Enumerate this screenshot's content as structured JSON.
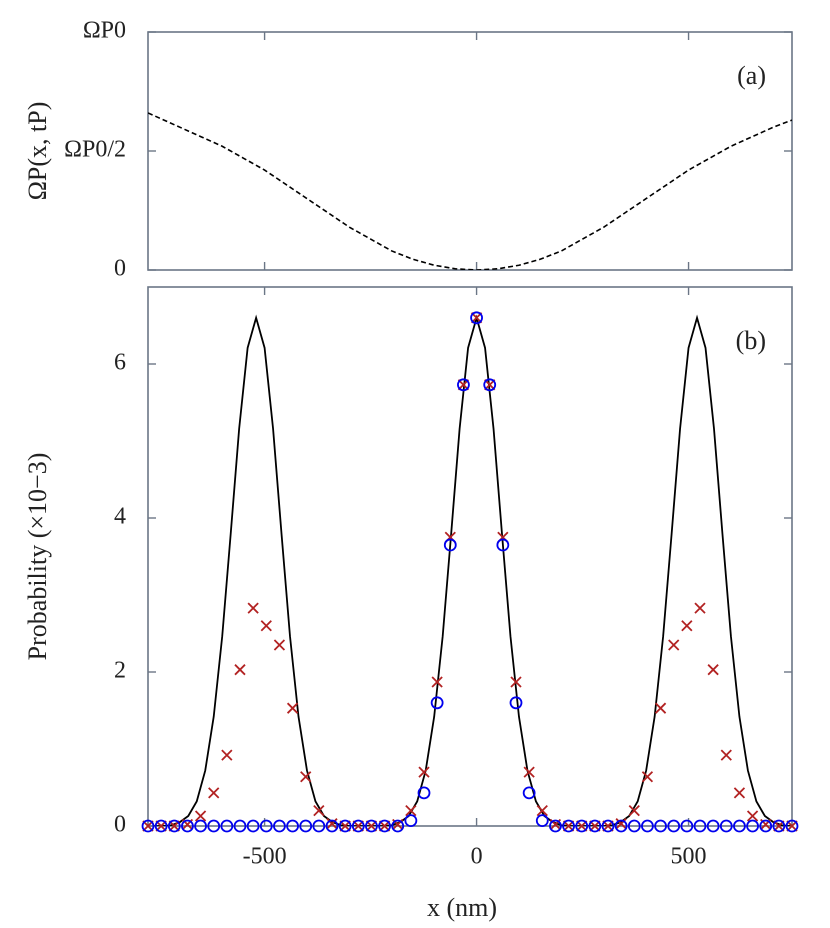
{
  "chart_data": [
    {
      "type": "line",
      "annotation": "(a)",
      "ylabel": "ΩP(x, tP)",
      "xlim": [
        -775,
        744
      ],
      "xticks": [
        -500,
        0,
        500
      ],
      "ylim": [
        0,
        1
      ],
      "yticks": [
        0,
        {
          "value": 0.5,
          "label": "ΩP0/2"
        },
        {
          "value": 1,
          "label": "ΩP0"
        }
      ],
      "series": [
        {
          "color": "#000000",
          "style": "dashed",
          "x": [
            -775,
            -750,
            -700,
            -650,
            -600,
            -550,
            -500,
            -450,
            -400,
            -350,
            -300,
            -250,
            -200,
            -150,
            -100,
            -50,
            0,
            50,
            100,
            150,
            200,
            250,
            300,
            350,
            400,
            450,
            500,
            550,
            600,
            650,
            700,
            744
          ],
          "values": [
            0.66,
            0.64,
            0.6,
            0.56,
            0.52,
            0.47,
            0.42,
            0.36,
            0.3,
            0.24,
            0.18,
            0.13,
            0.08,
            0.045,
            0.02,
            0.005,
            0,
            0.005,
            0.02,
            0.045,
            0.08,
            0.13,
            0.18,
            0.24,
            0.3,
            0.36,
            0.42,
            0.47,
            0.52,
            0.56,
            0.6,
            0.63
          ]
        }
      ]
    },
    {
      "type": "line",
      "annotation": "(b)",
      "ylabel": "Probability (×10−3)",
      "xlabel": "x (nm)",
      "xlim": [
        -775,
        744
      ],
      "xticks": [
        {
          "value": -500,
          "label": "-500"
        },
        0,
        500
      ],
      "ylim": [
        0,
        7
      ],
      "yticks": [
        0,
        2,
        4,
        6
      ],
      "series": [
        {
          "color": "#000000",
          "style": "solid",
          "x": [
            -760,
            -740,
            -720,
            -700,
            -680,
            -660,
            -640,
            -620,
            -600,
            -580,
            -560,
            -540,
            -520,
            -500,
            -480,
            -460,
            -440,
            -420,
            -400,
            -380,
            -360,
            -340,
            -320,
            -300,
            -280,
            -260,
            -240,
            -220,
            -200,
            -180,
            -160,
            -140,
            -120,
            -100,
            -80,
            -60,
            -40,
            -20,
            0,
            20,
            40,
            60,
            80,
            100,
            120,
            140,
            160,
            180,
            200,
            220,
            240,
            260,
            280,
            300,
            320,
            340,
            360,
            380,
            400,
            420,
            440,
            460,
            480,
            500,
            520,
            540,
            560,
            580,
            600,
            620,
            640,
            660,
            680,
            700,
            720,
            740
          ],
          "values": [
            0,
            0,
            0.01,
            0.05,
            0.13,
            0.32,
            0.72,
            1.42,
            2.46,
            3.79,
            5.16,
            6.21,
            6.6,
            6.21,
            5.16,
            3.79,
            2.46,
            1.42,
            0.72,
            0.32,
            0.13,
            0.05,
            0.01,
            0,
            0,
            0,
            0,
            0,
            0.01,
            0.05,
            0.13,
            0.32,
            0.72,
            1.42,
            2.46,
            3.79,
            5.16,
            6.21,
            6.6,
            6.21,
            5.16,
            3.79,
            2.46,
            1.42,
            0.72,
            0.32,
            0.13,
            0.05,
            0.01,
            0,
            0,
            0,
            0,
            0,
            0.01,
            0.05,
            0.13,
            0.32,
            0.72,
            1.42,
            2.46,
            3.79,
            5.16,
            6.21,
            6.6,
            6.21,
            5.16,
            3.79,
            2.46,
            1.42,
            0.72,
            0.32,
            0.13,
            0.05,
            0.01,
            0
          ]
        },
        {
          "color": "#b22222",
          "marker": "x",
          "x": [
            -775,
            -744,
            -713,
            -682,
            -651,
            -620,
            -589,
            -558,
            -527,
            -496,
            -465,
            -434,
            -403,
            -372,
            -341,
            -310,
            -279,
            -248,
            -217,
            -186,
            -155,
            -124,
            -93,
            -62,
            -31,
            0,
            31,
            62,
            93,
            124,
            155,
            186,
            217,
            248,
            279,
            310,
            341,
            372,
            403,
            434,
            465,
            496,
            527,
            558,
            589,
            620,
            651,
            682,
            713,
            744
          ],
          "values": [
            0,
            0,
            0,
            0.02,
            0.13,
            0.43,
            0.92,
            2.03,
            2.83,
            2.6,
            2.35,
            1.53,
            0.64,
            0.2,
            0.03,
            0,
            0,
            0,
            0,
            0.02,
            0.2,
            0.7,
            1.87,
            3.75,
            5.73,
            6.6,
            5.73,
            3.75,
            1.87,
            0.7,
            0.2,
            0.02,
            0,
            0,
            0,
            0,
            0.03,
            0.2,
            0.64,
            1.53,
            2.35,
            2.6,
            2.83,
            2.03,
            0.92,
            0.43,
            0.13,
            0.02,
            0,
            0
          ]
        },
        {
          "color": "#0000ee",
          "marker": "o",
          "x": [
            -775,
            -744,
            -713,
            -682,
            -651,
            -620,
            -589,
            -558,
            -527,
            -496,
            -465,
            -434,
            -403,
            -372,
            -341,
            -310,
            -279,
            -248,
            -217,
            -186,
            -155,
            -124,
            -93,
            -62,
            -31,
            0,
            31,
            62,
            93,
            124,
            155,
            186,
            217,
            248,
            279,
            310,
            341,
            372,
            403,
            434,
            465,
            496,
            527,
            558,
            589,
            620,
            651,
            682,
            713,
            744
          ],
          "values": [
            0,
            0,
            0,
            0,
            0,
            0,
            0,
            0,
            0,
            0,
            0,
            0,
            0,
            0,
            0,
            0,
            0,
            0,
            0,
            0,
            0.07,
            0.43,
            1.6,
            3.65,
            5.73,
            6.6,
            5.73,
            3.65,
            1.6,
            0.43,
            0.07,
            0,
            0,
            0,
            0,
            0,
            0,
            0,
            0,
            0,
            0,
            0,
            0,
            0,
            0,
            0,
            0,
            0,
            0,
            0
          ]
        }
      ]
    }
  ]
}
